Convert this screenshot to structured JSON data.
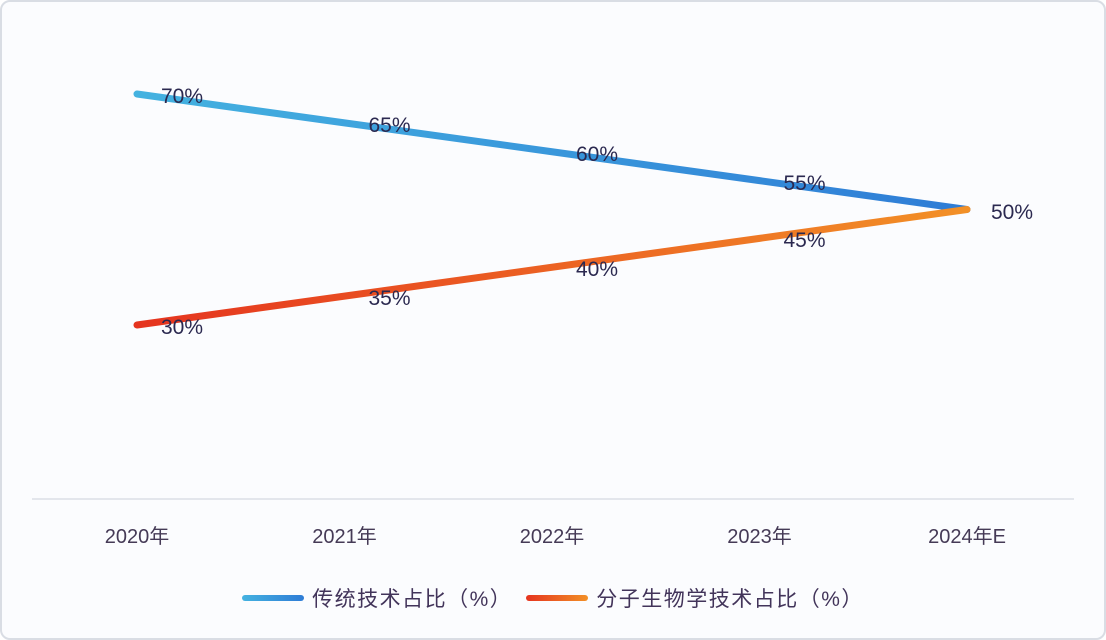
{
  "chart_data": {
    "type": "line",
    "title": "",
    "xlabel": "",
    "ylabel": "",
    "categories": [
      "2020年",
      "2021年",
      "2022年",
      "2023年",
      "2024年E"
    ],
    "series": [
      {
        "name": "传统技术占比（%）",
        "values": [
          70,
          65,
          60,
          55,
          50
        ],
        "point_labels": [
          "70%",
          "65%",
          "60%",
          "55%",
          "50%"
        ],
        "color_start": "#44b2e0",
        "color_end": "#2e7cd6"
      },
      {
        "name": "分子生物学技术占比（%）",
        "values": [
          30,
          35,
          40,
          45,
          50
        ],
        "point_labels": [
          "30%",
          "35%",
          "40%",
          "45%",
          ""
        ],
        "color_start": "#e5341f",
        "color_end": "#f29027"
      }
    ],
    "ylim": [
      25,
      75
    ],
    "grid": false,
    "legend_position": "bottom",
    "colors": {
      "data_label": "#2b2950",
      "axis_label": "#453a56",
      "axis_line": "#e3e6ec",
      "card_background": "#fbfcfe",
      "card_border": "#d9dde4"
    }
  }
}
